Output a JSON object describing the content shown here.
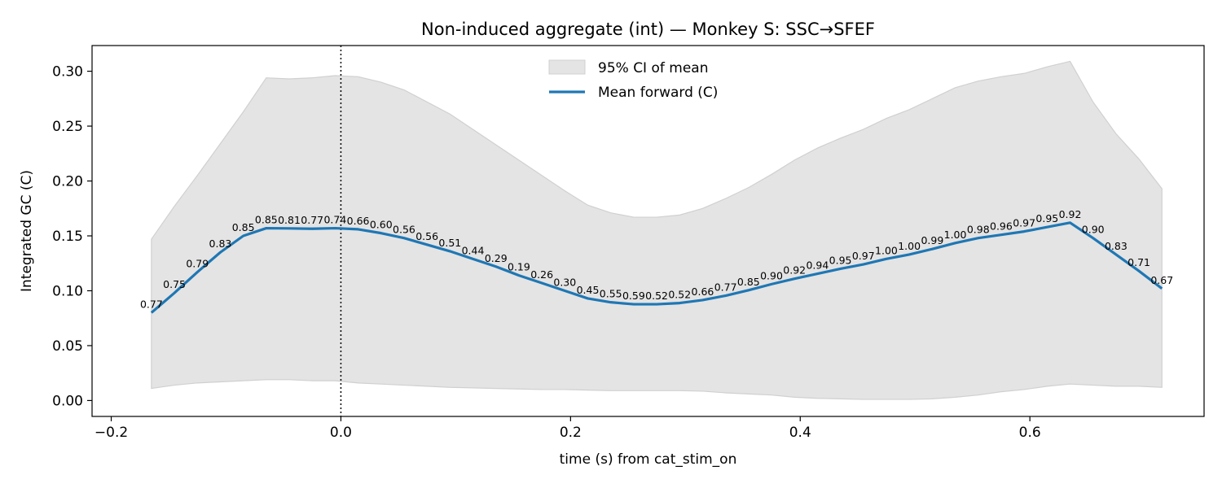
{
  "chart_data": {
    "type": "line",
    "title": "Non-induced aggregate (int) — Monkey S: SSC→SFEF",
    "xlabel": "time (s) from cat_stim_on",
    "ylabel": "Integrated GC (C)",
    "xlim": [
      -0.2167,
      0.7517
    ],
    "ylim": [
      -0.0145,
      0.3234
    ],
    "xticks": [
      -0.2,
      0.0,
      0.2,
      0.4,
      0.6
    ],
    "xtick_labels": [
      "−0.2",
      "0.0",
      "0.2",
      "0.4",
      "0.6"
    ],
    "yticks": [
      0.0,
      0.05,
      0.1,
      0.15,
      0.2,
      0.25,
      0.3
    ],
    "ytick_labels": [
      "0.00",
      "0.05",
      "0.10",
      "0.15",
      "0.20",
      "0.25",
      "0.30"
    ],
    "grid": false,
    "legend_position": "top-center",
    "vline": {
      "x": 0.0,
      "style": "dotted",
      "color": "#000000"
    },
    "series": [
      {
        "name": "Mean forward (C)",
        "color": "#1f77b4",
        "x": [
          -0.165,
          -0.145,
          -0.125,
          -0.105,
          -0.085,
          -0.065,
          -0.045,
          -0.025,
          -0.005,
          0.015,
          0.035,
          0.055,
          0.075,
          0.095,
          0.115,
          0.135,
          0.155,
          0.175,
          0.195,
          0.215,
          0.235,
          0.255,
          0.275,
          0.295,
          0.315,
          0.335,
          0.355,
          0.375,
          0.395,
          0.415,
          0.435,
          0.455,
          0.475,
          0.495,
          0.515,
          0.535,
          0.555,
          0.575,
          0.595,
          0.615,
          0.635,
          0.655,
          0.675,
          0.695,
          0.715
        ],
        "y": [
          0.08,
          0.098,
          0.117,
          0.135,
          0.15,
          0.157,
          0.1568,
          0.1565,
          0.157,
          0.156,
          0.1525,
          0.148,
          0.142,
          0.136,
          0.129,
          0.122,
          0.114,
          0.107,
          0.1,
          0.093,
          0.0895,
          0.0877,
          0.0877,
          0.0888,
          0.0915,
          0.0955,
          0.1005,
          0.106,
          0.111,
          0.1155,
          0.12,
          0.124,
          0.129,
          0.133,
          0.138,
          0.1435,
          0.148,
          0.151,
          0.154,
          0.158,
          0.162,
          0.148,
          0.133,
          0.118,
          0.102
        ],
        "labels": [
          "0.77",
          "0.75",
          "0.79",
          "0.83",
          "0.85",
          "0.85",
          "0.81",
          "0.77",
          "0.74",
          "0.66",
          "0.60",
          "0.56",
          "0.56",
          "0.51",
          "0.44",
          "0.29",
          "0.19",
          "0.26",
          "0.30",
          "0.45",
          "0.55",
          "0.59",
          "0.52",
          "0.52",
          "0.66",
          "0.77",
          "0.85",
          "0.90",
          "0.92",
          "0.94",
          "0.95",
          "0.97",
          "1.00",
          "1.00",
          "0.99",
          "1.00",
          "0.98",
          "0.96",
          "0.97",
          "0.95",
          "0.92",
          "0.90",
          "0.83",
          "0.71",
          "0.67"
        ]
      }
    ],
    "ci_band": {
      "name": "95% CI of mean",
      "color": "#e4e4e4",
      "x": [
        -0.165,
        -0.145,
        -0.125,
        -0.105,
        -0.085,
        -0.065,
        -0.045,
        -0.025,
        -0.005,
        0.015,
        0.035,
        0.055,
        0.075,
        0.095,
        0.115,
        0.135,
        0.155,
        0.175,
        0.195,
        0.215,
        0.235,
        0.255,
        0.275,
        0.295,
        0.315,
        0.335,
        0.355,
        0.375,
        0.395,
        0.415,
        0.435,
        0.455,
        0.475,
        0.495,
        0.515,
        0.535,
        0.555,
        0.575,
        0.595,
        0.615,
        0.635,
        0.655,
        0.675,
        0.695,
        0.715
      ],
      "upper": [
        0.147,
        0.177,
        0.205,
        0.234,
        0.263,
        0.294,
        0.293,
        0.294,
        0.296,
        0.295,
        0.29,
        0.283,
        0.272,
        0.261,
        0.247,
        0.233,
        0.219,
        0.205,
        0.191,
        0.178,
        0.171,
        0.167,
        0.167,
        0.169,
        0.175,
        0.184,
        0.194,
        0.206,
        0.219,
        0.23,
        0.239,
        0.247,
        0.257,
        0.265,
        0.275,
        0.285,
        0.291,
        0.295,
        0.298,
        0.304,
        0.309,
        0.272,
        0.243,
        0.22,
        0.193
      ],
      "lower": [
        0.011,
        0.014,
        0.016,
        0.017,
        0.018,
        0.019,
        0.019,
        0.018,
        0.018,
        0.016,
        0.015,
        0.014,
        0.013,
        0.012,
        0.0115,
        0.011,
        0.0105,
        0.01,
        0.01,
        0.0095,
        0.009,
        0.009,
        0.009,
        0.009,
        0.0085,
        0.007,
        0.006,
        0.005,
        0.003,
        0.002,
        0.0015,
        0.001,
        0.001,
        0.001,
        0.0015,
        0.003,
        0.005,
        0.008,
        0.01,
        0.013,
        0.015,
        0.014,
        0.013,
        0.013,
        0.012
      ]
    },
    "legend": [
      {
        "label": "95% CI of mean",
        "kind": "patch",
        "color": "#e4e4e4"
      },
      {
        "label": "Mean forward (C)",
        "kind": "line",
        "color": "#1f77b4"
      }
    ]
  }
}
